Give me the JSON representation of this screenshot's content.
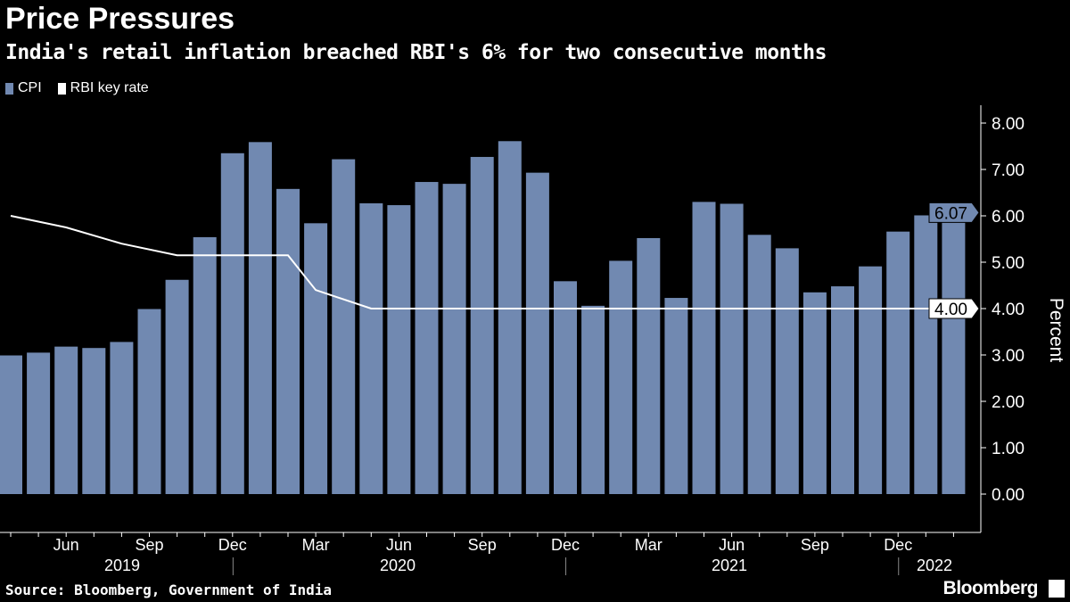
{
  "title": "Price Pressures",
  "subtitle": "India's retail inflation breached RBI's 6% for two consecutive months",
  "source": "Source: Bloomberg, Government of India",
  "logo": "Bloomberg",
  "chart_data": {
    "type": "bar",
    "ylabel": "Percent",
    "ylim": [
      -0.8,
      8.3
    ],
    "yticks": [
      "0.00",
      "1.00",
      "2.00",
      "3.00",
      "4.00",
      "5.00",
      "6.00",
      "7.00",
      "8.00"
    ],
    "xtick_labels": [
      {
        "label": "Jun",
        "month": "Jun 2019"
      },
      {
        "label": "Sep",
        "month": "Sep 2019"
      },
      {
        "label": "Dec",
        "month": "Dec 2019"
      },
      {
        "label": "Mar",
        "month": "Mar 2020"
      },
      {
        "label": "Jun",
        "month": "Jun 2020"
      },
      {
        "label": "Sep",
        "month": "Sep 2020"
      },
      {
        "label": "Dec",
        "month": "Dec 2020"
      },
      {
        "label": "Mar",
        "month": "Mar 2021"
      },
      {
        "label": "Jun",
        "month": "Jun 2021"
      },
      {
        "label": "Sep",
        "month": "Sep 2021"
      },
      {
        "label": "Dec",
        "month": "Dec 2021"
      }
    ],
    "year_labels": [
      "2019",
      "2020",
      "2021",
      "2022"
    ],
    "colors": {
      "CPI": "#7189b1",
      "RBI key rate": "#ffffff",
      "background": "#000000"
    },
    "legend_position": "top-left",
    "categories": [
      "Apr 2019",
      "May 2019",
      "Jun 2019",
      "Jul 2019",
      "Aug 2019",
      "Sep 2019",
      "Oct 2019",
      "Nov 2019",
      "Dec 2019",
      "Jan 2020",
      "Feb 2020",
      "Mar 2020",
      "Apr 2020",
      "May 2020",
      "Jun 2020",
      "Jul 2020",
      "Aug 2020",
      "Sep 2020",
      "Oct 2020",
      "Nov 2020",
      "Dec 2020",
      "Jan 2021",
      "Feb 2021",
      "Mar 2021",
      "Apr 2021",
      "May 2021",
      "Jun 2021",
      "Jul 2021",
      "Aug 2021",
      "Sep 2021",
      "Oct 2021",
      "Nov 2021",
      "Dec 2021",
      "Jan 2022",
      "Feb 2022"
    ],
    "series": [
      {
        "name": "CPI",
        "type": "bar",
        "values": [
          2.99,
          3.05,
          3.18,
          3.15,
          3.28,
          3.99,
          4.62,
          5.54,
          7.35,
          7.59,
          6.58,
          5.84,
          7.22,
          6.27,
          6.23,
          6.73,
          6.69,
          7.27,
          7.61,
          6.93,
          4.59,
          4.06,
          5.03,
          5.52,
          4.23,
          6.3,
          6.26,
          5.59,
          5.3,
          4.35,
          4.48,
          4.91,
          5.66,
          6.01,
          6.07
        ],
        "last_label": "6.07"
      },
      {
        "name": "RBI key rate",
        "type": "line",
        "points": [
          [
            "Apr 2019",
            6.0
          ],
          [
            "Jun 2019",
            5.75
          ],
          [
            "Aug 2019",
            5.4
          ],
          [
            "Oct 2019",
            5.15
          ],
          [
            "Feb 2020",
            5.15
          ],
          [
            "Mar 2020",
            4.4
          ],
          [
            "May 2020",
            4.0
          ],
          [
            "Feb 2022",
            4.0
          ]
        ],
        "last_label": "4.00"
      }
    ]
  }
}
